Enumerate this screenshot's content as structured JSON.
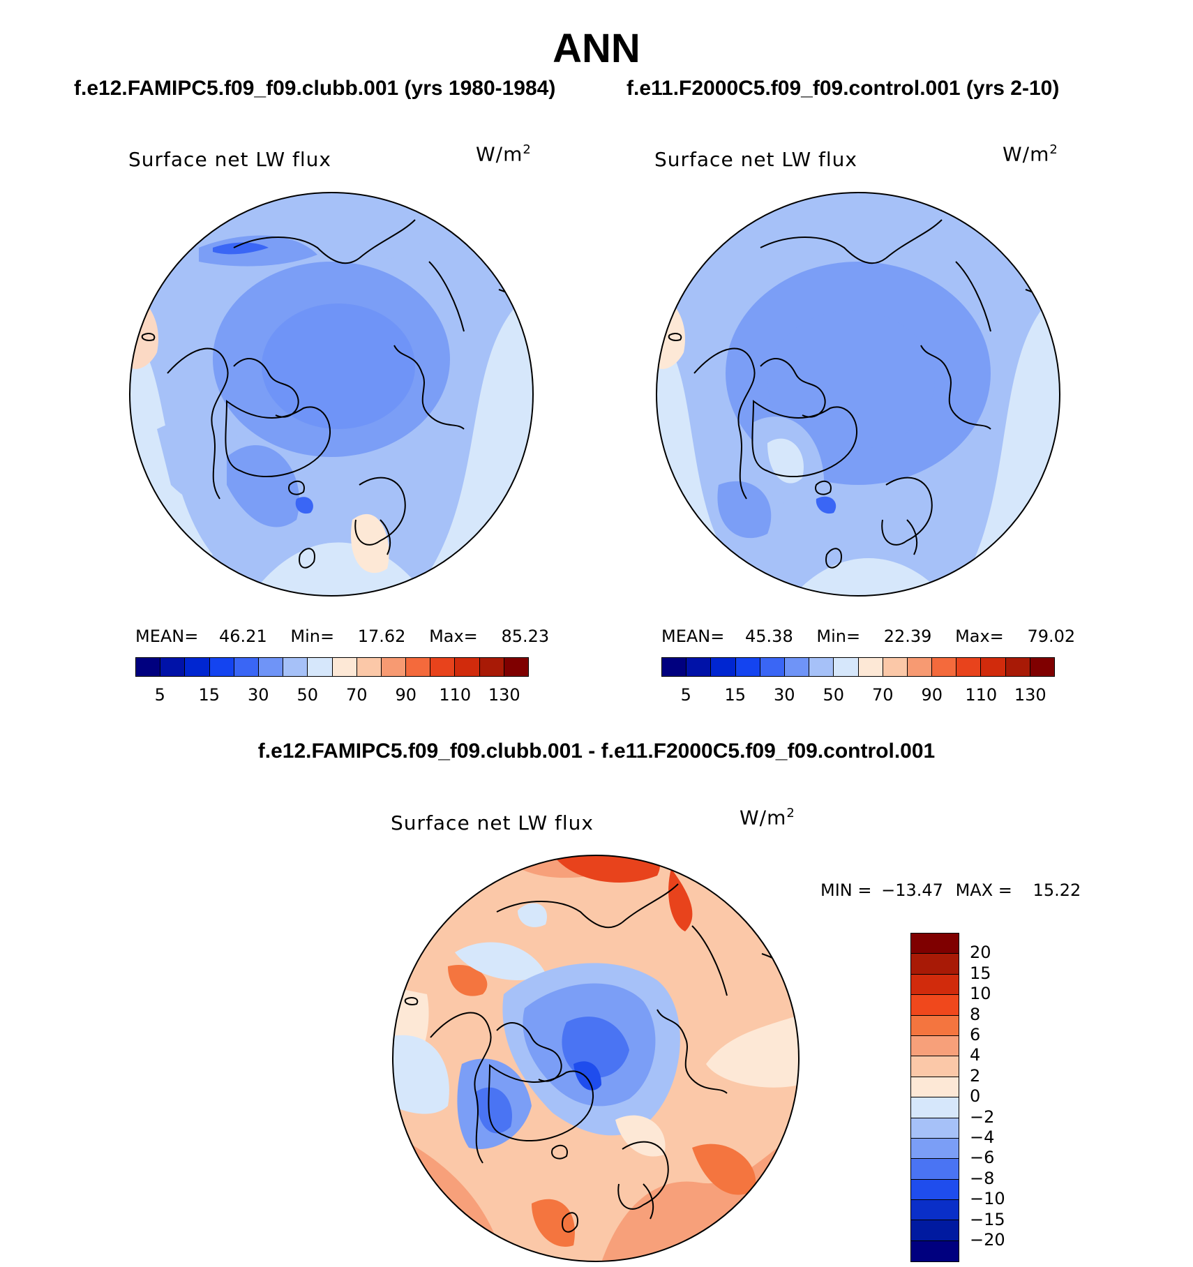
{
  "title": "ANN",
  "panels": [
    {
      "case": "f.e12.FAMIPC5.f09_f09.clubb.001 (yrs 1980-1984)",
      "variable": "Surface net LW flux",
      "units_base": "W/m",
      "units_exp": "2",
      "stats": {
        "mean_label": "MEAN=",
        "mean": "46.21",
        "min_label": "Min=",
        "min": "17.62",
        "max_label": "Max=",
        "max": "85.23"
      }
    },
    {
      "case": "f.e11.F2000C5.f09_f09.control.001 (yrs 2-10)",
      "variable": "Surface net LW flux",
      "units_base": "W/m",
      "units_exp": "2",
      "stats": {
        "mean_label": "MEAN=",
        "mean": "45.38",
        "min_label": "Min=",
        "min": "22.39",
        "max_label": "Max=",
        "max": "79.02"
      }
    }
  ],
  "colorbar_top": {
    "tick_labels": [
      "5",
      "15",
      "30",
      "50",
      "70",
      "90",
      "110",
      "130"
    ],
    "colors": [
      "#00007f",
      "#0012a8",
      "#0026d1",
      "#1444f0",
      "#3a66f5",
      "#6f94f7",
      "#a6c1f8",
      "#d6e7fb",
      "#fde8d6",
      "#fbc8a8",
      "#f79a72",
      "#f46a3c",
      "#e8431c",
      "#d12b0c",
      "#a81a06",
      "#7f0000"
    ]
  },
  "diff": {
    "title": "f.e12.FAMIPC5.f09_f09.clubb.001 - f.e11.F2000C5.f09_f09.control.001",
    "variable": "Surface net LW flux",
    "units_base": "W/m",
    "units_exp": "2",
    "minmax": {
      "min_label": "MIN =",
      "min": "−13.47",
      "max_label": "MAX =",
      "max": "15.22"
    },
    "colorbar": {
      "labels": [
        "20",
        "15",
        "10",
        "8",
        "6",
        "4",
        "2",
        "0",
        "−2",
        "−4",
        "−6",
        "−8",
        "−10",
        "−15",
        "−20"
      ],
      "colors": [
        "#7f0000",
        "#a81a06",
        "#d12b0c",
        "#f0481c",
        "#f4753f",
        "#f7a07a",
        "#fbc8a8",
        "#fde8d6",
        "#d6e7fb",
        "#a6c1f8",
        "#7b9ef6",
        "#4a74f3",
        "#1f4ded",
        "#0a2fc8",
        "#001aa0",
        "#00007f"
      ]
    }
  }
}
